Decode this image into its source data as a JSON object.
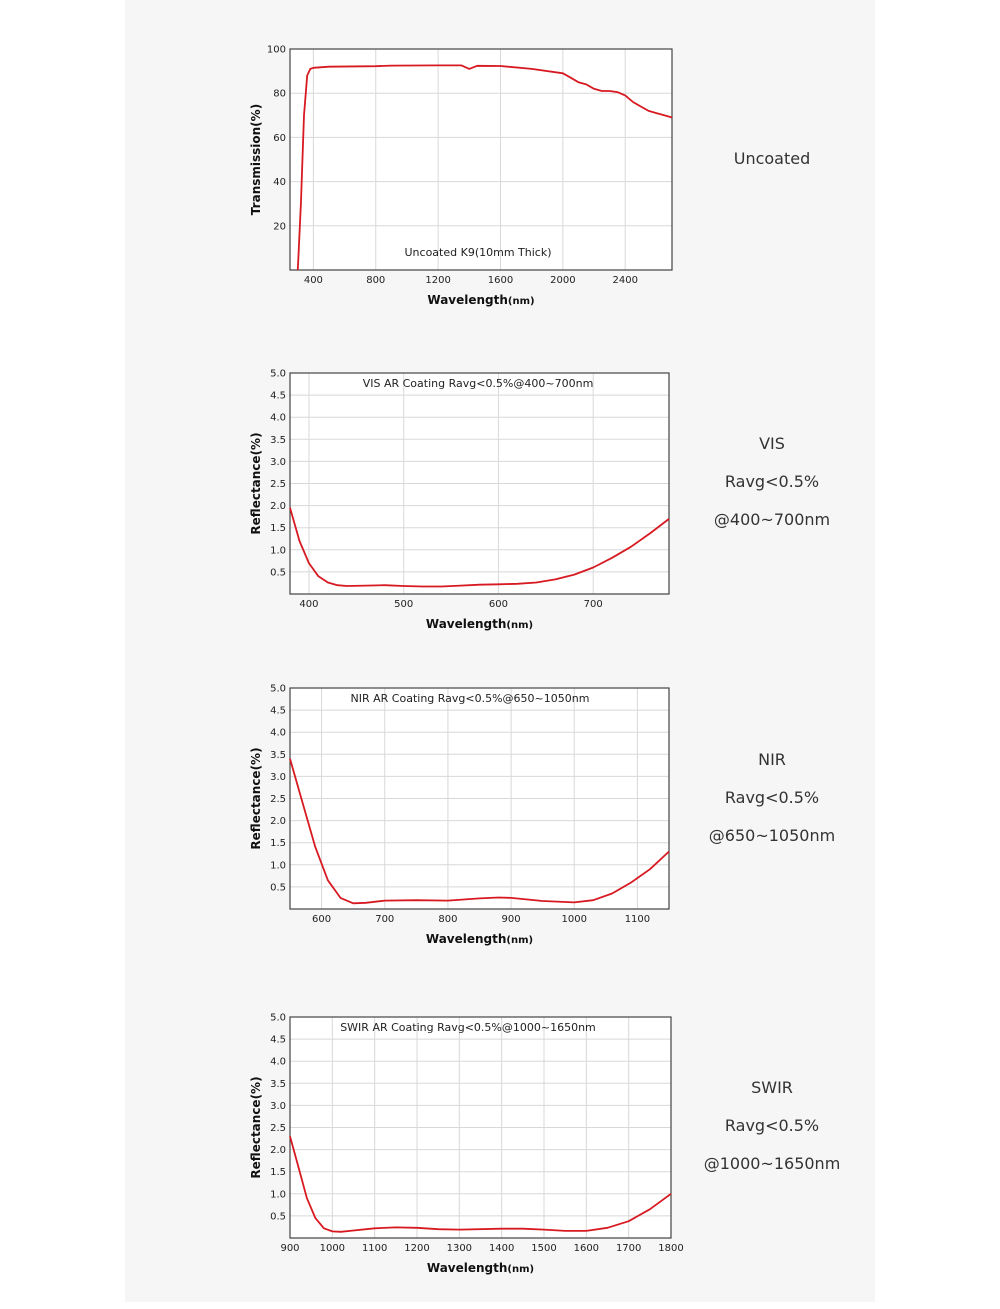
{
  "colors": {
    "curve": "#d71a21",
    "grid": "#d8d8d8",
    "frame": "#444444",
    "panel": "#f6f6f7"
  },
  "chart_data": [
    {
      "type": "line",
      "title": "Uncoated K9(10mm Thick)",
      "xlabel": "Wavelength",
      "xunit": "(nm)",
      "ylabel": "Transmission(%)",
      "xlim": [
        250,
        2700
      ],
      "ylim": [
        0,
        100
      ],
      "xticks": [
        400,
        800,
        1200,
        1600,
        2000,
        2400
      ],
      "yticks": [
        20,
        40,
        60,
        80,
        100
      ],
      "grid": true,
      "series": [
        {
          "x": [
            300,
            320,
            340,
            360,
            380,
            400,
            500,
            800,
            900,
            1200,
            1350,
            1400,
            1450,
            1600,
            1800,
            2000,
            2050,
            2100,
            2150,
            2200,
            2250,
            2300,
            2350,
            2400,
            2450,
            2500,
            2550,
            2600,
            2650,
            2700
          ],
          "y": [
            0,
            30,
            70,
            88,
            91,
            91.5,
            92,
            92.2,
            92.5,
            92.6,
            92.6,
            91,
            92.4,
            92.3,
            91,
            89,
            87,
            85,
            84,
            82,
            81,
            81,
            80.5,
            79,
            76,
            74,
            72,
            71,
            70,
            69
          ]
        }
      ],
      "side_label": [
        "Uncoated"
      ]
    },
    {
      "type": "line",
      "title": "VIS AR Coating Ravg<0.5%@400~700nm",
      "xlabel": "Wavelength",
      "xunit": "(nm)",
      "ylabel": "Reflectance(%)",
      "xlim": [
        380,
        780
      ],
      "ylim": [
        0,
        5
      ],
      "xticks": [
        400,
        500,
        600,
        700
      ],
      "yticks": [
        0.5,
        1.0,
        1.5,
        2.0,
        2.5,
        3.0,
        3.5,
        4.0,
        4.5,
        5.0
      ],
      "grid": true,
      "series": [
        {
          "x": [
            380,
            390,
            400,
            410,
            420,
            430,
            440,
            460,
            480,
            500,
            520,
            540,
            560,
            580,
            600,
            620,
            640,
            660,
            680,
            700,
            720,
            740,
            760,
            780
          ],
          "y": [
            1.95,
            1.2,
            0.7,
            0.4,
            0.26,
            0.2,
            0.18,
            0.19,
            0.2,
            0.18,
            0.17,
            0.17,
            0.19,
            0.21,
            0.22,
            0.23,
            0.26,
            0.33,
            0.44,
            0.6,
            0.82,
            1.07,
            1.37,
            1.7
          ]
        }
      ],
      "side_label": [
        "VIS",
        "Ravg<0.5%",
        "@400~700nm"
      ]
    },
    {
      "type": "line",
      "title": "NIR AR Coating Ravg<0.5%@650~1050nm",
      "xlabel": "Wavelength",
      "xunit": "(nm)",
      "ylabel": "Reflectance(%)",
      "xlim": [
        550,
        1150
      ],
      "ylim": [
        0,
        5
      ],
      "xticks": [
        600,
        700,
        800,
        900,
        1000,
        1100
      ],
      "yticks": [
        0.5,
        1.0,
        1.5,
        2.0,
        2.5,
        3.0,
        3.5,
        4.0,
        4.5,
        5.0
      ],
      "grid": true,
      "series": [
        {
          "x": [
            550,
            570,
            590,
            610,
            630,
            650,
            670,
            700,
            750,
            800,
            850,
            880,
            900,
            950,
            1000,
            1030,
            1060,
            1090,
            1120,
            1150
          ],
          "y": [
            3.4,
            2.4,
            1.4,
            0.65,
            0.25,
            0.13,
            0.14,
            0.19,
            0.2,
            0.19,
            0.24,
            0.26,
            0.25,
            0.18,
            0.15,
            0.2,
            0.35,
            0.6,
            0.9,
            1.3
          ]
        }
      ],
      "side_label": [
        "NIR",
        "Ravg<0.5%",
        "@650~1050nm"
      ]
    },
    {
      "type": "line",
      "title": "SWIR AR Coating Ravg<0.5%@1000~1650nm",
      "xlabel": "Wavelength",
      "xunit": "(nm)",
      "ylabel": "Reflectance(%)",
      "xlim": [
        900,
        1800
      ],
      "ylim": [
        0,
        5
      ],
      "xticks": [
        900,
        1000,
        1100,
        1200,
        1300,
        1400,
        1500,
        1600,
        1700,
        1800
      ],
      "yticks": [
        0.5,
        1.0,
        1.5,
        2.0,
        2.5,
        3.0,
        3.5,
        4.0,
        4.5,
        5.0
      ],
      "grid": true,
      "series": [
        {
          "x": [
            900,
            920,
            940,
            960,
            980,
            1000,
            1020,
            1050,
            1100,
            1150,
            1200,
            1250,
            1300,
            1400,
            1450,
            1500,
            1550,
            1600,
            1650,
            1700,
            1750,
            1800
          ],
          "y": [
            2.3,
            1.6,
            0.9,
            0.45,
            0.22,
            0.15,
            0.14,
            0.17,
            0.22,
            0.24,
            0.23,
            0.2,
            0.19,
            0.21,
            0.21,
            0.19,
            0.16,
            0.16,
            0.23,
            0.38,
            0.65,
            1.0
          ]
        }
      ],
      "side_label": [
        "SWIR",
        "Ravg<0.5%",
        "@1000~1650nm"
      ]
    }
  ]
}
